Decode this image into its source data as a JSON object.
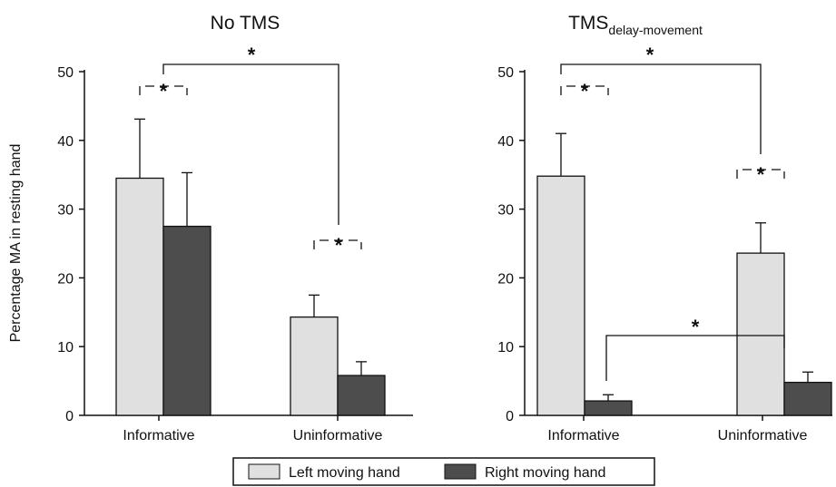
{
  "chart_data": [
    {
      "type": "bar",
      "title": "No TMS",
      "title_sub": "",
      "ylabel": "Percentage  MA in resting hand",
      "categories": [
        "Informative",
        "Uninformative"
      ],
      "ylim": [
        0,
        50
      ],
      "yticks": [
        "0",
        "10",
        "20",
        "30",
        "40",
        "50"
      ],
      "series": [
        {
          "name": "Left moving hand",
          "values": [
            34.5,
            14.3
          ],
          "errors": [
            8.6,
            3.2
          ]
        },
        {
          "name": "Right moving hand",
          "values": [
            27.5,
            5.8
          ],
          "errors": [
            7.8,
            2.0
          ]
        }
      ],
      "significance": [
        {
          "label": "*",
          "between": "Informative: Left vs Right"
        },
        {
          "label": "*",
          "between": "Uninformative: Left vs Right"
        },
        {
          "label": "*",
          "between": "Informative vs Uninformative"
        }
      ]
    },
    {
      "type": "bar",
      "title": "TMS",
      "title_sub": "delay-movement",
      "ylabel": "",
      "categories": [
        "Informative",
        "Uninformative"
      ],
      "ylim": [
        0,
        50
      ],
      "yticks": [
        "0",
        "10",
        "20",
        "30",
        "40",
        "50"
      ],
      "series": [
        {
          "name": "Left moving hand",
          "values": [
            34.8,
            23.6
          ],
          "errors": [
            6.2,
            4.4
          ]
        },
        {
          "name": "Right moving hand",
          "values": [
            2.1,
            4.8
          ],
          "errors": [
            0.9,
            1.5
          ]
        }
      ],
      "significance": [
        {
          "label": "*",
          "between": "Informative: Left vs Right"
        },
        {
          "label": "*",
          "between": "Uninformative: Left vs Right"
        },
        {
          "label": "*",
          "between": "Informative Left vs Uninformative Left"
        },
        {
          "label": "*",
          "between": "Informative Right vs Uninformative Right"
        }
      ]
    }
  ],
  "legend": {
    "items": [
      {
        "label": "Left moving hand",
        "color": "#e0e0e0"
      },
      {
        "label": "Right moving hand",
        "color": "#4d4d4d"
      }
    ]
  },
  "colors": {
    "left": "#e0e0e0",
    "right": "#4d4d4d",
    "stroke": "#111111"
  }
}
